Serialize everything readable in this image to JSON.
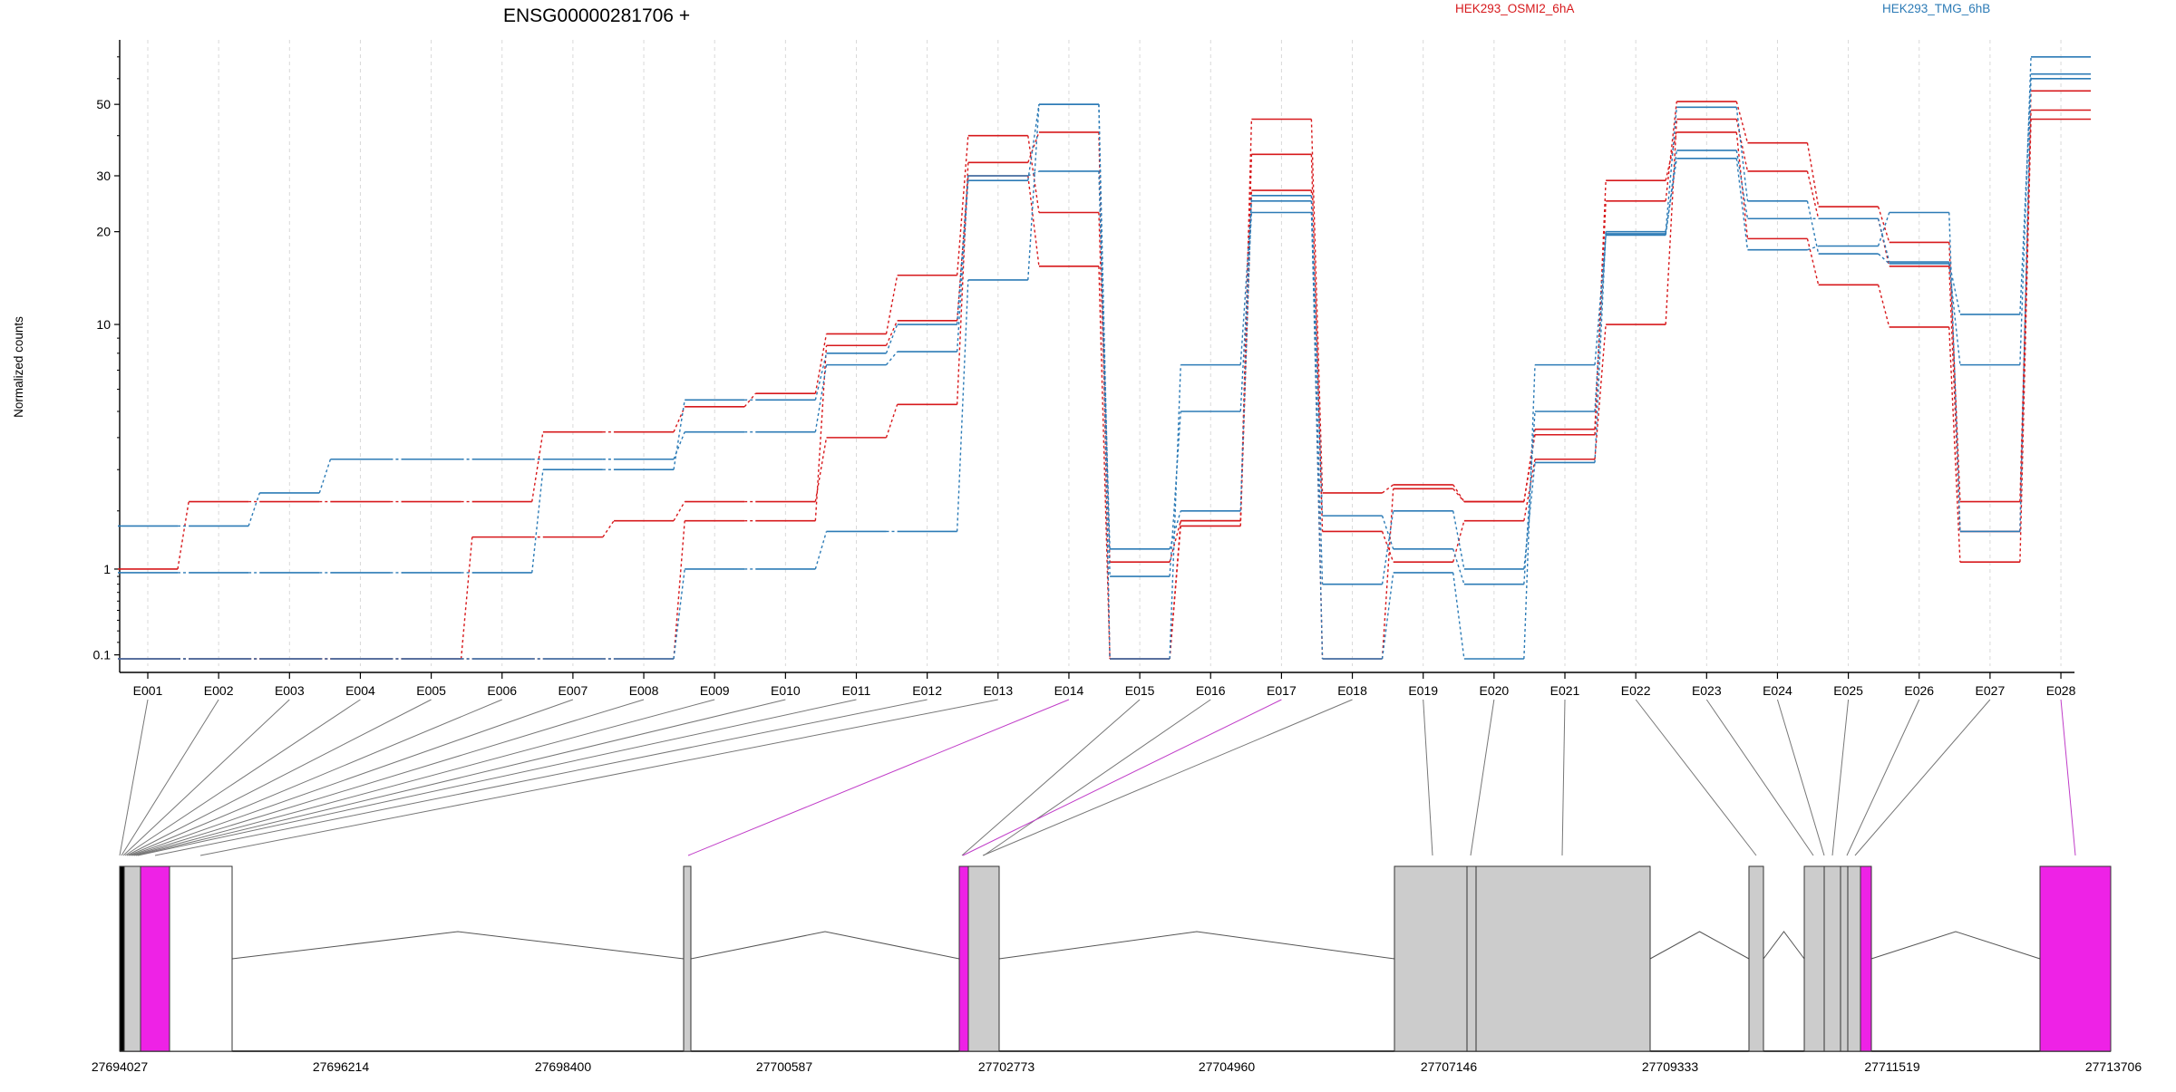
{
  "chart_data": {
    "type": "line",
    "title": "ENSG00000281706 +",
    "ylabel": "Normalized counts",
    "xlabel": "",
    "y_scale": "log(count+1)",
    "ylim": [
      0.07,
      75
    ],
    "y_ticks": [
      0.1,
      1,
      10,
      20,
      30,
      50
    ],
    "y_tick_labels": [
      "0.1",
      "1",
      "10",
      "20",
      "30",
      "50"
    ],
    "grid": "vertical dashed gridlines at each exon",
    "legend": {
      "placement": "top",
      "entries": [
        {
          "label": "HEK293_OSMI2_6hA",
          "color": "#d7191c"
        },
        {
          "label": "HEK293_TMG_6hB",
          "color": "#2c7bb6"
        }
      ]
    },
    "categories": [
      "E001",
      "E002",
      "E003",
      "E004",
      "E005",
      "E006",
      "E007",
      "E008",
      "E009",
      "E010",
      "E011",
      "E012",
      "E013",
      "E014",
      "E015",
      "E016",
      "E017",
      "E018",
      "E019",
      "E020",
      "E021",
      "E022",
      "E023",
      "E024",
      "E025",
      "E026",
      "E027",
      "E028"
    ],
    "series": [
      {
        "group": "HEK293_OSMI2_6hA",
        "color": "#d7191c",
        "values": [
          1.0,
          2.2,
          2.2,
          2.2,
          2.2,
          2.2,
          4.2,
          4.2,
          5.2,
          5.8,
          9.3,
          14.5,
          40,
          23,
          1.1,
          1.8,
          45,
          2.4,
          2.6,
          2.2,
          4.3,
          25,
          51,
          38,
          24,
          18.5,
          2.2,
          48
        ]
      },
      {
        "group": "HEK293_OSMI2_6hA",
        "color": "#d7191c",
        "values": [
          0.07,
          0.07,
          0.07,
          0.07,
          0.07,
          1.5,
          1.5,
          1.8,
          2.2,
          2.2,
          4.0,
          5.3,
          33,
          41,
          0.07,
          1.8,
          35,
          1.6,
          1.1,
          1.8,
          3.3,
          10,
          45,
          31,
          22,
          15.5,
          1.6,
          55
        ]
      },
      {
        "group": "HEK293_OSMI2_6hA",
        "color": "#d7191c",
        "values": [
          0.07,
          0.07,
          0.07,
          0.07,
          0.07,
          0.07,
          0.07,
          0.07,
          1.8,
          1.8,
          8.5,
          10.3,
          30,
          15.5,
          0.07,
          1.7,
          27,
          0.07,
          2.5,
          2.2,
          4.1,
          29,
          41,
          19,
          13.5,
          9.8,
          1.1,
          45
        ]
      },
      {
        "group": "HEK293_TMG_6hB",
        "color": "#2c7bb6",
        "values": [
          1.7,
          1.7,
          2.4,
          3.3,
          3.3,
          3.3,
          3.3,
          3.3,
          4.2,
          4.2,
          7.3,
          8.1,
          29,
          50,
          0.9,
          5.0,
          23,
          0.8,
          2.0,
          1.0,
          3.2,
          20,
          49,
          25,
          17,
          15.8,
          7.3,
          70
        ]
      },
      {
        "group": "HEK293_TMG_6hB",
        "color": "#2c7bb6",
        "values": [
          0.95,
          0.95,
          0.95,
          0.95,
          0.95,
          0.95,
          3.0,
          3.0,
          5.5,
          5.5,
          8.0,
          10.0,
          30,
          31,
          1.3,
          2.0,
          26,
          1.9,
          1.3,
          0.8,
          5.0,
          19.5,
          36,
          22,
          22,
          16,
          10.8,
          60
        ]
      },
      {
        "group": "HEK293_TMG_6hB",
        "color": "#2c7bb6",
        "values": [
          0.07,
          0.07,
          0.07,
          0.07,
          0.07,
          0.07,
          0.07,
          0.07,
          1.0,
          1.0,
          1.6,
          1.6,
          14,
          50,
          0.07,
          7.3,
          25,
          0.07,
          0.95,
          0.07,
          7.3,
          19.7,
          34,
          17.5,
          18,
          23,
          1.6,
          62
        ]
      }
    ],
    "gene_model": {
      "genomic_axis_ticks": [
        "27694027",
        "27696214",
        "27698400",
        "27700587",
        "27702773",
        "27704960",
        "27707146",
        "27709333",
        "27711519",
        "27713706"
      ],
      "feature_colors": {
        "exon": "#cccccc",
        "highlighted_exon": "#ee22e6",
        "utr": "#ffffff",
        "intron": "#555555"
      }
    }
  }
}
